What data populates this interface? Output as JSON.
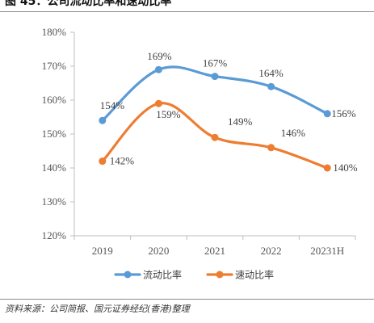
{
  "title": "图 45：公司流动比率和速动比率",
  "source": "资料来源：公司简报、国元证券经纪(香港)整理",
  "chart_data": {
    "type": "line",
    "categories": [
      "2019",
      "2020",
      "2021",
      "2022",
      "20231H"
    ],
    "ylim": [
      120,
      180
    ],
    "yticks": [
      120,
      130,
      140,
      150,
      160,
      170,
      180
    ],
    "ytick_labels": [
      "120%",
      "130%",
      "140%",
      "150%",
      "160%",
      "170%",
      "180%"
    ],
    "grid": false,
    "legend_position": "bottom",
    "series": [
      {
        "name": "流动比率",
        "color": "#5b9bd5",
        "smooth": true,
        "values": [
          154,
          169,
          167,
          164,
          156
        ],
        "labels": [
          "154%",
          "169%",
          "167%",
          "164%",
          "156%"
        ]
      },
      {
        "name": "速动比率",
        "color": "#ed7d31",
        "smooth": true,
        "values": [
          142,
          159,
          149,
          146,
          140
        ],
        "labels": [
          "142%",
          "159%",
          "149%",
          "146%",
          "140%"
        ]
      }
    ]
  }
}
